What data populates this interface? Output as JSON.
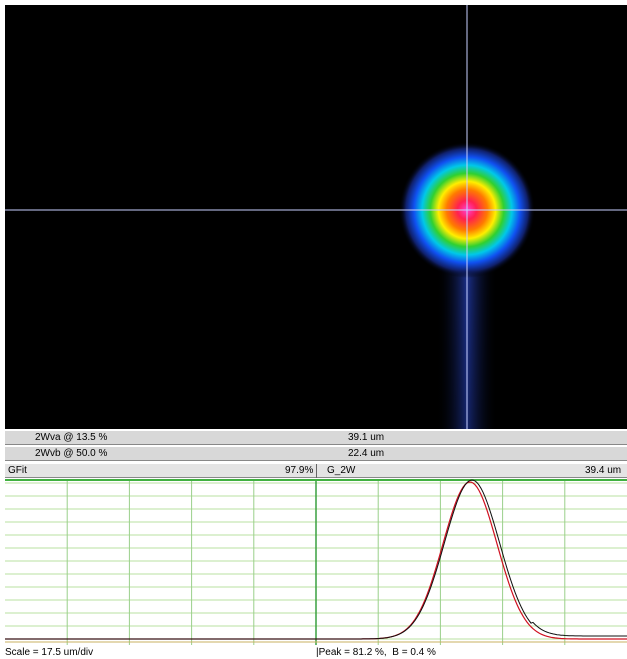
{
  "measurements": [
    {
      "label": "2Wva @ 13.5 %",
      "value": "39.1 um"
    },
    {
      "label": "2Wvb @ 50.0 %",
      "value": "22.4 um"
    }
  ],
  "fit_header": {
    "left_label": "GFit",
    "left_value": "97.9%",
    "right_label": "G_2W",
    "right_value": "39.4 um"
  },
  "status": {
    "scale": "Scale = 17.5 um/div",
    "peak": "|Peak = 81.2 %,  B = 0.4 %"
  }
}
